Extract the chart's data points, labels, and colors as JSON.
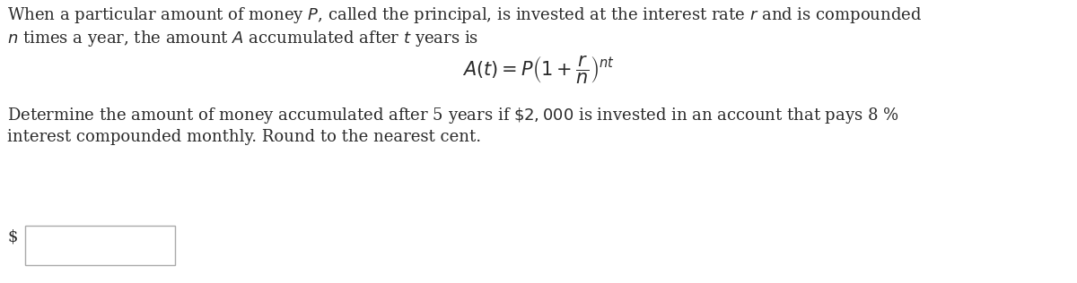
{
  "bg_color": "#ffffff",
  "text_color": "#2a2a2a",
  "line1": "When a particular amount of money $P$, called the principal, is invested at the interest rate $r$ and is compounded",
  "line2": "$n$ times a year, the amount $A$ accumulated after $t$ years is",
  "formula": "$A(t) = P\\left(1 + \\dfrac{r}{n}\\right)^{nt}$",
  "line3": "Determine the amount of money accumulated after 5 years if $\\$2,000$ is invested in an account that pays 8 %",
  "line4": "interest compounded monthly. Round to the nearest cent.",
  "dollar_sign": "$",
  "font_size": 13.0
}
